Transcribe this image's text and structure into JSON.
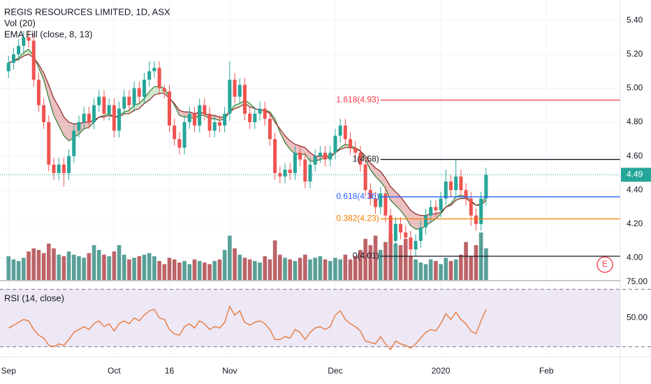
{
  "chart_data": {
    "type": "candlestick",
    "title": "REGIS RESOURCES LIMITED, 1D, ASX",
    "xlim": [
      -1.7,
      121.7
    ],
    "xticks": [
      {
        "value": 0,
        "label": "Sep"
      },
      {
        "value": 21,
        "label": "Oct"
      },
      {
        "value": 32,
        "label": "16"
      },
      {
        "value": 44,
        "label": "Nov"
      },
      {
        "value": 65,
        "label": "Dec"
      },
      {
        "value": 86,
        "label": "2020"
      },
      {
        "value": 107,
        "label": "Feb"
      }
    ],
    "ylim": [
      3.87,
      5.52
    ],
    "yticks": [
      {
        "value": 4.0,
        "label": "4.00"
      },
      {
        "value": 4.2,
        "label": "4.20"
      },
      {
        "value": 4.4,
        "label": "4.40"
      },
      {
        "value": 4.6,
        "label": "4.60"
      },
      {
        "value": 4.8,
        "label": "4.80"
      },
      {
        "value": 5.0,
        "label": "5.00"
      },
      {
        "value": 5.2,
        "label": "5.20"
      },
      {
        "value": 5.4,
        "label": "5.40"
      }
    ],
    "grid": true,
    "up_color": "#26a69a",
    "down_color": "#ef5350",
    "open": [
      5.1,
      5.15,
      5.2,
      5.25,
      5.3,
      5.28,
      5.05,
      4.9,
      4.8,
      4.55,
      4.5,
      4.55,
      4.5,
      4.6,
      4.75,
      4.8,
      4.85,
      4.8,
      4.9,
      4.95,
      4.85,
      4.9,
      4.75,
      4.88,
      4.95,
      4.9,
      5.0,
      4.95,
      5.05,
      5.1,
      5.12,
      5.0,
      4.98,
      4.78,
      4.7,
      4.65,
      4.8,
      4.85,
      4.78,
      4.9,
      4.85,
      4.75,
      4.8,
      4.78,
      4.85,
      5.05,
      4.95,
      5.02,
      4.85,
      4.8,
      4.85,
      4.88,
      4.82,
      4.7,
      4.5,
      4.48,
      4.52,
      4.5,
      4.62,
      4.58,
      4.45,
      4.55,
      4.6,
      4.62,
      4.58,
      4.62,
      4.72,
      4.78,
      4.7,
      4.65,
      4.62,
      4.55,
      4.4,
      4.35,
      4.3,
      4.38,
      4.25,
      4.1,
      4.2,
      4.15,
      4.12,
      4.05,
      4.1,
      4.18,
      4.25,
      4.3,
      4.28,
      4.35,
      4.45,
      4.4,
      4.48,
      4.4,
      4.35,
      4.25,
      4.2,
      4.35
    ],
    "high": [
      5.19,
      5.24,
      5.29,
      5.34,
      5.34,
      5.32,
      5.09,
      4.94,
      4.84,
      4.59,
      4.59,
      4.59,
      4.64,
      4.79,
      4.84,
      4.89,
      4.89,
      4.94,
      4.99,
      4.99,
      4.94,
      4.94,
      4.92,
      4.99,
      4.99,
      5.04,
      5.04,
      5.09,
      5.16,
      5.16,
      5.16,
      5.02,
      5.02,
      4.82,
      4.74,
      4.84,
      4.89,
      4.89,
      4.94,
      4.94,
      4.89,
      4.84,
      4.84,
      4.89,
      5.16,
      5.09,
      5.06,
      5.06,
      4.89,
      4.89,
      4.92,
      4.92,
      4.86,
      4.74,
      4.54,
      4.56,
      4.56,
      4.66,
      4.66,
      4.62,
      4.59,
      4.64,
      4.66,
      4.66,
      4.66,
      4.76,
      4.82,
      4.82,
      4.74,
      4.69,
      4.66,
      4.59,
      4.44,
      4.39,
      4.42,
      4.42,
      4.29,
      4.24,
      4.24,
      4.19,
      4.16,
      4.14,
      4.22,
      4.29,
      4.34,
      4.34,
      4.39,
      4.52,
      4.49,
      4.58,
      4.52,
      4.44,
      4.39,
      4.29,
      4.39,
      4.53
    ],
    "low": [
      5.06,
      5.11,
      5.16,
      5.21,
      5.24,
      5.01,
      4.86,
      4.76,
      4.51,
      4.46,
      4.46,
      4.42,
      4.46,
      4.56,
      4.71,
      4.76,
      4.76,
      4.76,
      4.86,
      4.81,
      4.81,
      4.71,
      4.71,
      4.84,
      4.86,
      4.86,
      4.91,
      4.91,
      5.01,
      5.06,
      4.96,
      4.94,
      4.74,
      4.66,
      4.61,
      4.61,
      4.76,
      4.74,
      4.74,
      4.81,
      4.71,
      4.71,
      4.74,
      4.74,
      4.81,
      4.91,
      4.91,
      4.81,
      4.76,
      4.76,
      4.81,
      4.78,
      4.66,
      4.46,
      4.44,
      4.44,
      4.46,
      4.46,
      4.54,
      4.41,
      4.41,
      4.51,
      4.56,
      4.54,
      4.54,
      4.58,
      4.68,
      4.66,
      4.61,
      4.58,
      4.51,
      4.36,
      4.31,
      4.26,
      4.26,
      4.21,
      4.06,
      4.06,
      4.11,
      4.08,
      4.01,
      4.01,
      4.06,
      4.14,
      4.21,
      4.24,
      4.24,
      4.31,
      4.36,
      4.36,
      4.36,
      4.31,
      4.19,
      4.16,
      4.16,
      4.31
    ],
    "close": [
      5.15,
      5.2,
      5.25,
      5.3,
      5.28,
      5.05,
      4.9,
      4.8,
      4.55,
      4.5,
      4.55,
      4.5,
      4.6,
      4.75,
      4.8,
      4.85,
      4.8,
      4.9,
      4.95,
      4.85,
      4.9,
      4.75,
      4.88,
      4.95,
      4.9,
      5.0,
      4.95,
      5.05,
      5.1,
      5.12,
      5.0,
      4.98,
      4.78,
      4.7,
      4.65,
      4.8,
      4.85,
      4.78,
      4.9,
      4.85,
      4.75,
      4.8,
      4.78,
      4.85,
      5.05,
      4.95,
      5.02,
      4.85,
      4.8,
      4.85,
      4.88,
      4.82,
      4.7,
      4.5,
      4.48,
      4.52,
      4.5,
      4.62,
      4.58,
      4.45,
      4.55,
      4.6,
      4.62,
      4.58,
      4.62,
      4.72,
      4.78,
      4.7,
      4.65,
      4.62,
      4.55,
      4.4,
      4.35,
      4.3,
      4.38,
      4.25,
      4.1,
      4.2,
      4.15,
      4.12,
      4.05,
      4.1,
      4.18,
      4.25,
      4.3,
      4.28,
      4.35,
      4.45,
      4.4,
      4.48,
      4.4,
      4.35,
      4.25,
      4.2,
      4.35,
      4.49
    ],
    "last_price": 4.49,
    "last_price_color": "#26a69a",
    "volume": {
      "name": "Vol (20)",
      "up_color": "#3b8f86",
      "down_color": "#b0484e",
      "values": [
        1.5,
        1.3,
        1.2,
        1.4,
        1.8,
        2.0,
        1.9,
        1.7,
        2.3,
        2.0,
        1.6,
        1.5,
        1.8,
        1.6,
        1.5,
        1.4,
        1.7,
        2.2,
        1.9,
        1.6,
        1.5,
        1.8,
        2.2,
        1.6,
        1.3,
        1.4,
        1.5,
        1.6,
        1.7,
        1.5,
        1.2,
        1.0,
        1.4,
        1.3,
        1.1,
        1.2,
        1.0,
        1.3,
        1.2,
        1.1,
        1.0,
        1.2,
        1.3,
        1.9,
        2.8,
        2.0,
        1.6,
        1.4,
        1.3,
        1.2,
        1.1,
        1.5,
        1.3,
        2.5,
        1.6,
        1.4,
        1.3,
        1.2,
        1.4,
        1.6,
        1.3,
        1.4,
        1.5,
        1.3,
        1.2,
        1.4,
        1.3,
        1.6,
        1.3,
        1.5,
        1.9,
        2.6,
        2.2,
        2.8,
        1.9,
        2.4,
        2.9,
        2.3,
        2.2,
        2.6,
        1.5,
        1.3,
        1.1,
        1.0,
        1.3,
        1.2,
        1.0,
        1.4,
        1.2,
        1.3,
        1.6,
        2.4,
        1.5,
        2.2,
        3.0,
        2.0
      ]
    },
    "ema": {
      "name": "EMA Fill (close, 8, 13)",
      "up_fill": "#4caf50",
      "down_fill": "#b71c1c",
      "series": [
        {
          "color": "#2e7d32",
          "values": [
            5.15,
            5.16,
            5.18,
            5.21,
            5.23,
            5.19,
            5.12,
            5.05,
            4.94,
            4.84,
            4.78,
            4.72,
            4.69,
            4.71,
            4.73,
            4.76,
            4.77,
            4.8,
            4.83,
            4.84,
            4.85,
            4.83,
            4.84,
            4.86,
            4.87,
            4.9,
            4.91,
            4.94,
            4.98,
            5.01,
            5.01,
            5.0,
            4.95,
            4.9,
            4.84,
            4.83,
            4.83,
            4.82,
            4.84,
            4.84,
            4.82,
            4.82,
            4.81,
            4.82,
            4.86,
            4.9,
            4.91,
            4.93,
            4.91,
            4.88,
            4.87,
            4.87,
            4.86,
            4.82,
            4.74,
            4.68,
            4.64,
            4.61,
            4.61,
            4.61,
            4.57,
            4.57,
            4.58,
            4.59,
            4.59,
            4.62,
            4.65,
            4.67,
            4.66,
            4.65,
            4.63,
            4.58,
            4.52,
            4.48,
            4.45,
            4.41,
            4.34,
            4.31,
            4.28,
            4.24,
            4.19,
            4.17,
            4.17,
            4.19,
            4.21,
            4.23,
            4.26,
            4.3,
            4.32,
            4.36,
            4.37,
            4.36,
            4.34,
            4.31,
            4.32,
            4.36
          ]
        },
        {
          "color": "#8e2424",
          "values": [
            5.15,
            5.16,
            5.17,
            5.19,
            5.2,
            5.18,
            5.14,
            5.09,
            5.02,
            4.94,
            4.89,
            4.83,
            4.8,
            4.79,
            4.79,
            4.8,
            4.8,
            4.81,
            4.83,
            4.83,
            4.84,
            4.83,
            4.83,
            4.85,
            4.85,
            4.87,
            4.88,
            4.91,
            4.93,
            4.96,
            4.97,
            4.97,
            4.94,
            4.91,
            4.87,
            4.86,
            4.86,
            4.85,
            4.86,
            4.85,
            4.84,
            4.84,
            4.83,
            4.83,
            4.86,
            4.88,
            4.89,
            4.91,
            4.89,
            4.88,
            4.87,
            4.87,
            4.85,
            4.8,
            4.76,
            4.72,
            4.69,
            4.67,
            4.66,
            4.65,
            4.62,
            4.6,
            4.6,
            4.6,
            4.6,
            4.62,
            4.64,
            4.65,
            4.65,
            4.64,
            4.63,
            4.6,
            4.56,
            4.53,
            4.51,
            4.47,
            4.42,
            4.39,
            4.36,
            4.32,
            4.28,
            4.26,
            4.25,
            4.25,
            4.26,
            4.26,
            4.27,
            4.3,
            4.31,
            4.34,
            4.35,
            4.35,
            4.33,
            4.31,
            4.31,
            4.34
          ]
        }
      ]
    },
    "fib_levels": [
      {
        "label": "1.618(4.93)",
        "value": 4.93,
        "color": "#f23645",
        "start": 74
      },
      {
        "label": "1(4.58)",
        "value": 4.58,
        "color": "#131722",
        "start": 74
      },
      {
        "label": "0.618(4.36)",
        "value": 4.36,
        "color": "#2962ff",
        "start": 74
      },
      {
        "label": "0.382(4.23)",
        "value": 4.23,
        "color": "#f57c00",
        "start": 74
      },
      {
        "label": "0(4.01)",
        "value": 4.01,
        "color": "#131722",
        "start": 74
      }
    ],
    "earnings_marker": "E",
    "earnings_color": "#f23645",
    "rsi": {
      "name": "RSI (14, close)",
      "color": "#e8732c",
      "band_fill": "#ede7f6",
      "ylim": [
        23.5,
        75.5
      ],
      "yticks": [
        {
          "value": 75,
          "label": "75.00"
        },
        {
          "value": 50,
          "label": "50.00"
        }
      ],
      "bands": [
        30,
        70
      ],
      "values": [
        43,
        45,
        47,
        49,
        48,
        42,
        38,
        36,
        31,
        30,
        32,
        31,
        35,
        40,
        42,
        44,
        42,
        46,
        48,
        44,
        46,
        41,
        46,
        48,
        46,
        50,
        48,
        52,
        55,
        56,
        50,
        49,
        42,
        39,
        38,
        44,
        46,
        43,
        48,
        46,
        42,
        44,
        43,
        47,
        58,
        52,
        55,
        47,
        45,
        47,
        48,
        46,
        42,
        35,
        35,
        37,
        36,
        42,
        40,
        35,
        40,
        43,
        44,
        42,
        44,
        52,
        55,
        49,
        46,
        44,
        41,
        34,
        33,
        32,
        37,
        32,
        28,
        34,
        32,
        31,
        29,
        32,
        36,
        40,
        42,
        41,
        46,
        53,
        49,
        54,
        49,
        46,
        41,
        39,
        48,
        56
      ]
    }
  }
}
